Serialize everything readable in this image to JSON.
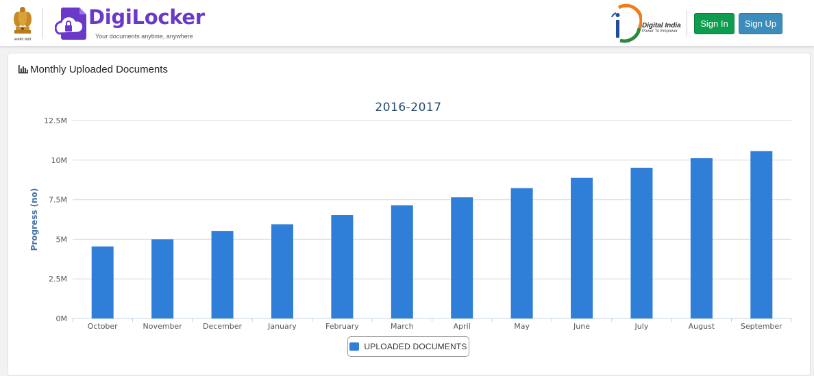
{
  "header": {
    "emblem_caption": "सत्यमेव जयते",
    "brand_name": "DigiLocker",
    "brand_tagline": "Your documents anytime, anywhere",
    "partner_name": "Digital India",
    "partner_tagline": "Power To Empower",
    "sign_in_label": "Sign In",
    "sign_up_label": "Sign Up"
  },
  "panel": {
    "title": "Monthly Uploaded Documents"
  },
  "colors": {
    "bar": "#2f7ed8",
    "brand": "#6a39c9",
    "sign_in": "#0e9c4f",
    "sign_up": "#3c8dbc",
    "axis_title": "#4572a7"
  },
  "chart_data": {
    "type": "bar",
    "title": "2016-2017",
    "ylabel": "Progress (no)",
    "xlabel": "",
    "categories": [
      "October",
      "November",
      "December",
      "January",
      "February",
      "March",
      "April",
      "May",
      "June",
      "July",
      "August",
      "September"
    ],
    "series": [
      {
        "name": "UPLOADED DOCUMENTS",
        "values": [
          4550000,
          5000000,
          5530000,
          5950000,
          6530000,
          7150000,
          7650000,
          8230000,
          8880000,
          9520000,
          10120000,
          10570000
        ]
      }
    ],
    "ylim": [
      0,
      12500000
    ],
    "yticks": [
      "0M",
      "2.5M",
      "5M",
      "7.5M",
      "10M",
      "12.5M"
    ],
    "ytick_values": [
      0,
      2500000,
      5000000,
      7500000,
      10000000,
      12500000
    ],
    "grid": true,
    "legend": "bottom-center"
  }
}
